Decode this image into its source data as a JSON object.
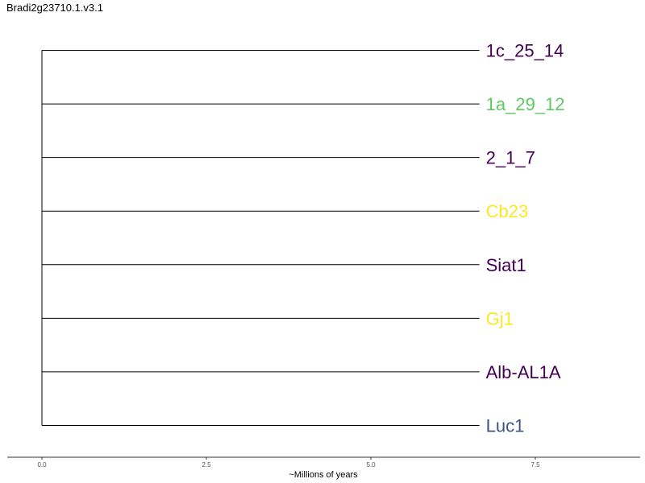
{
  "title": "Bradi2g23710.1.v3.1",
  "chart_data": {
    "type": "dendrogram",
    "orientation": "rightward",
    "xlabel": "~Millions of years",
    "xlim": [
      0,
      9
    ],
    "x_ticks": [
      0,
      2.5,
      5,
      7.5
    ],
    "x_tick_labels": [
      "0.0",
      "2.5",
      "5.0",
      "7.5"
    ],
    "grid": false,
    "root_x": 0,
    "leaves": [
      {
        "label": "1c_25_14",
        "color": "#440154",
        "branch_length": 6.65
      },
      {
        "label": "1a_29_12",
        "color": "#5ec962",
        "branch_length": 6.65
      },
      {
        "label": "2_1_7",
        "color": "#440154",
        "branch_length": 6.65
      },
      {
        "label": "Cb23",
        "color": "#fde725",
        "branch_length": 6.65
      },
      {
        "label": "Siat1",
        "color": "#440154",
        "branch_length": 6.65
      },
      {
        "label": "Gj1",
        "color": "#fde725",
        "branch_length": 6.65
      },
      {
        "label": "Alb-AL1A",
        "color": "#440154",
        "branch_length": 6.65
      },
      {
        "label": "Luc1",
        "color": "#3b528b",
        "branch_length": 6.65
      }
    ]
  }
}
